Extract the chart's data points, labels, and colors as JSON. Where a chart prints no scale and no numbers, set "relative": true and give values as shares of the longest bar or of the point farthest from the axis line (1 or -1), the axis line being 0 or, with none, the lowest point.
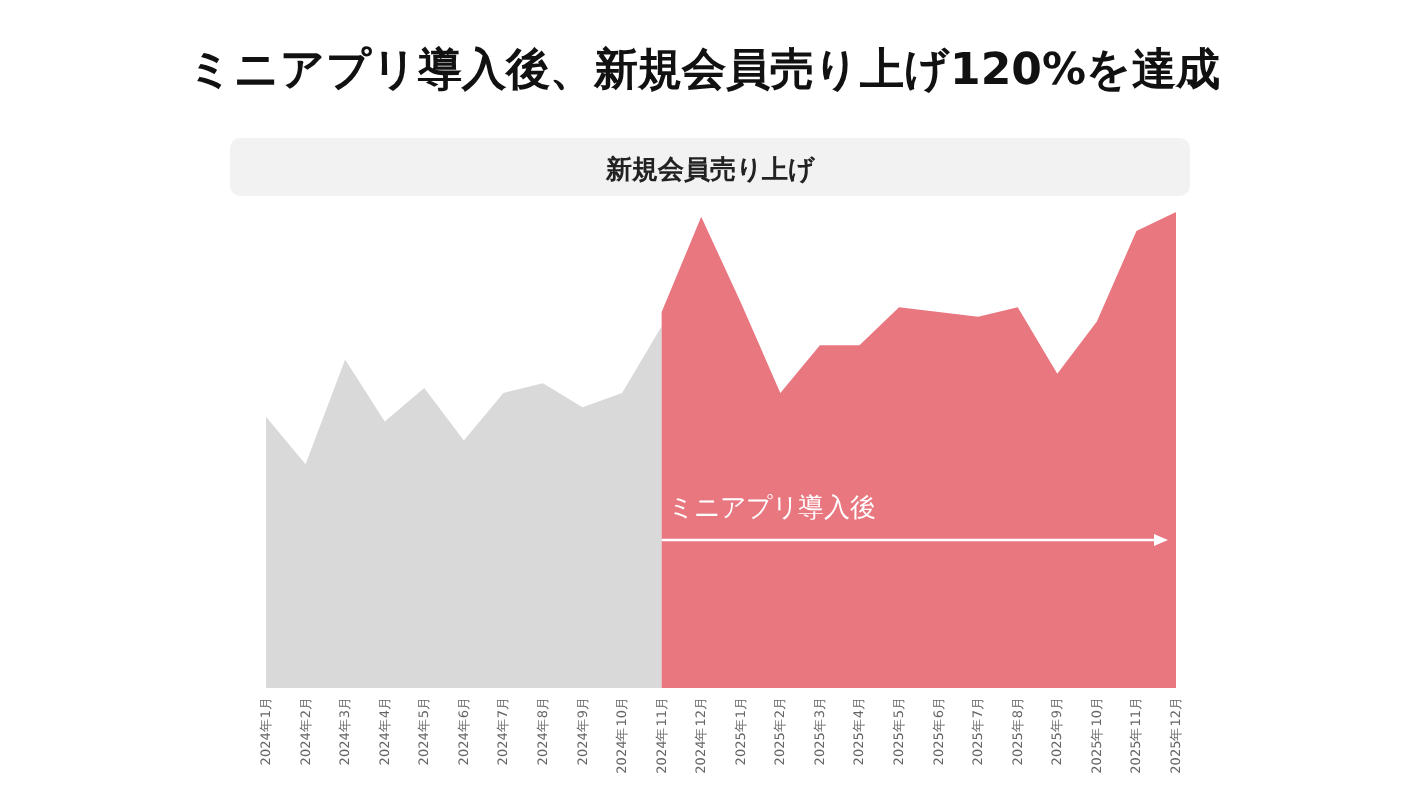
{
  "chart_data": {
    "type": "area",
    "title": "ミニアプリ導入後、新規会員売り上げ120%を達成",
    "subtitle": "新規会員売り上げ",
    "relative": true,
    "categories": [
      "2024年1月",
      "2024年2月",
      "2024年3月",
      "2024年4月",
      "2024年5月",
      "2024年6月",
      "2024年7月",
      "2024年8月",
      "2024年9月",
      "2024年10月",
      "2024年11月",
      "2024年12月",
      "2025年1月",
      "2025年2月",
      "2025年3月",
      "2025年4月",
      "2025年5月",
      "2025年6月",
      "2025年7月",
      "2025年8月",
      "2025年9月",
      "2025年10月",
      "2025年11月",
      "2025年12月"
    ],
    "series": [
      {
        "color": "#d9d9d9",
        "values": [
          0.57,
          0.47,
          0.69,
          0.56,
          0.63,
          0.52,
          0.62,
          0.64,
          0.59,
          0.62,
          0.76,
          null,
          null,
          null,
          null,
          null,
          null,
          null,
          null,
          null,
          null,
          null,
          null,
          null
        ]
      },
      {
        "color": "#e97780",
        "values": [
          null,
          null,
          null,
          null,
          null,
          null,
          null,
          null,
          null,
          null,
          0.79,
          0.99,
          0.81,
          0.62,
          0.72,
          0.72,
          0.8,
          0.79,
          0.78,
          0.8,
          0.66,
          0.77,
          0.96,
          1.0
        ]
      }
    ],
    "annotations": [
      "ミニアプリ導入後"
    ]
  }
}
